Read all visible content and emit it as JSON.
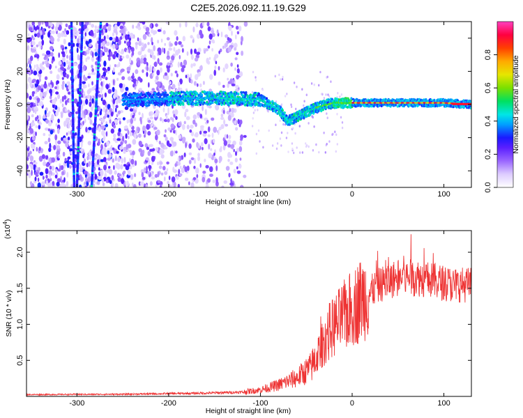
{
  "title": "C2E5.2026.092.11.19.G29",
  "chart_data": [
    {
      "type": "heatmap",
      "xlabel": "Height of straight line (km)",
      "ylabel": "Frequency (Hz)",
      "xlim": [
        -355,
        130
      ],
      "ylim": [
        -50,
        50
      ],
      "xticks": [
        -300,
        -200,
        -100,
        0,
        100
      ],
      "yticks": [
        -40,
        -20,
        0,
        20,
        40
      ],
      "colorbar": {
        "label": "Normalized spectral amplitude",
        "range": [
          0,
          1
        ],
        "ticks": [
          0.0,
          0.2,
          0.4,
          0.6,
          0.8
        ],
        "tick_labels": [
          "0.0",
          "0.2",
          "0.4",
          "0.6",
          "0.8"
        ]
      },
      "ridge": {
        "description_points": [
          {
            "x": -230,
            "y": 3
          },
          {
            "x": -150,
            "y": 4
          },
          {
            "x": -100,
            "y": 3
          },
          {
            "x": -80,
            "y": -3
          },
          {
            "x": -70,
            "y": -10
          },
          {
            "x": -55,
            "y": -6
          },
          {
            "x": -40,
            "y": -2
          },
          {
            "x": -20,
            "y": 1
          },
          {
            "x": 0,
            "y": 1
          },
          {
            "x": 100,
            "y": 1
          },
          {
            "x": 130,
            "y": 0
          }
        ]
      },
      "streaks": [
        {
          "x_start": -306,
          "y_start": 50,
          "x_end": -303,
          "y_end": -50
        },
        {
          "x_start": -300,
          "y_start": -50,
          "x_end": -294,
          "y_end": 50
        },
        {
          "x_start": -284,
          "y_start": -50,
          "x_end": -274,
          "y_end": 50
        }
      ]
    },
    {
      "type": "line",
      "xlabel": "Height of straight line (km)",
      "ylabel": "SNR (10 * v/v)",
      "exponent_label": "(x10",
      "exponent_sup": "4",
      "exponent_close": ")",
      "xlim": [
        -355,
        130
      ],
      "ylim": [
        0,
        23000
      ],
      "xticks": [
        -300,
        -200,
        -100,
        0,
        100
      ],
      "yticks": [
        5000,
        10000,
        15000,
        20000
      ],
      "ytick_labels": [
        "0.5",
        "1.0",
        "1.5",
        "2.0"
      ],
      "series": [
        {
          "color": "#ee3333",
          "profile": [
            {
              "x": -355,
              "y": 250
            },
            {
              "x": -250,
              "y": 300
            },
            {
              "x": -160,
              "y": 450
            },
            {
              "x": -120,
              "y": 600
            },
            {
              "x": -100,
              "y": 900
            },
            {
              "x": -80,
              "y": 1600
            },
            {
              "x": -60,
              "y": 2600
            },
            {
              "x": -45,
              "y": 4000
            },
            {
              "x": -35,
              "y": 6500
            },
            {
              "x": -25,
              "y": 9000
            },
            {
              "x": -10,
              "y": 11000
            },
            {
              "x": 10,
              "y": 13500
            },
            {
              "x": 30,
              "y": 15500
            },
            {
              "x": 50,
              "y": 16500
            },
            {
              "x": 70,
              "y": 16500
            },
            {
              "x": 90,
              "y": 16000
            },
            {
              "x": 110,
              "y": 15500
            },
            {
              "x": 130,
              "y": 15500
            }
          ]
        }
      ]
    }
  ]
}
